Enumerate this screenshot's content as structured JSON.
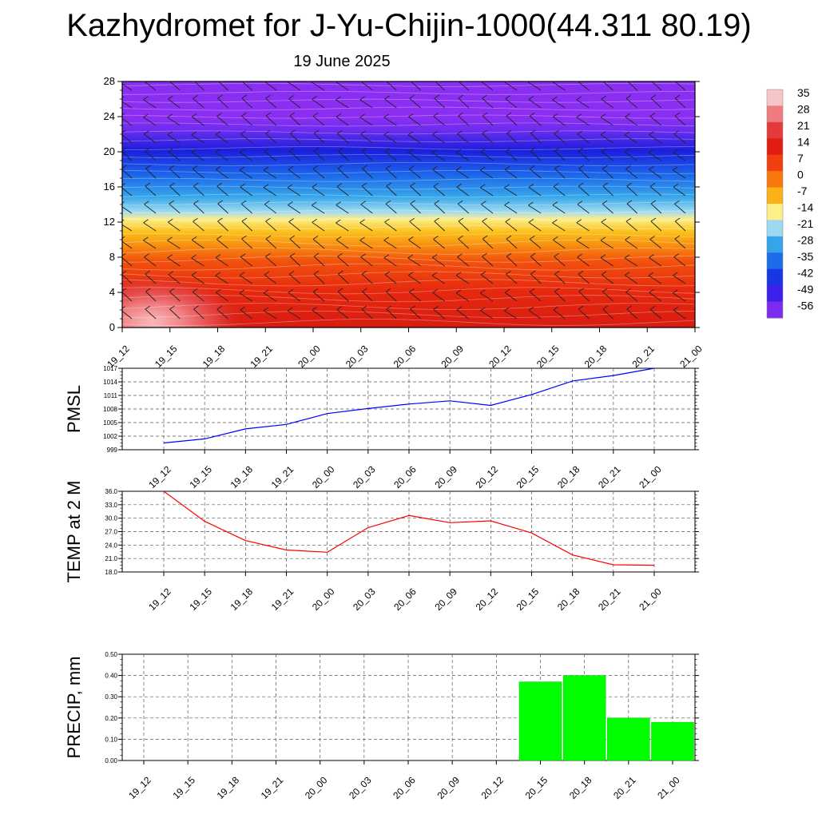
{
  "title": "Kazhydromet for J-Yu-Chijin-1000(44.311 80.19)",
  "subtitle": "19 June 2025",
  "time_labels": [
    "19_12",
    "19_15",
    "19_18",
    "19_21",
    "20_00",
    "20_03",
    "20_06",
    "20_09",
    "20_12",
    "20_15",
    "20_18",
    "20_21",
    "21_00"
  ],
  "chart_data": [
    {
      "type": "heatmap",
      "name": "cross-section",
      "x": [
        "19_12",
        "19_15",
        "19_18",
        "19_21",
        "20_00",
        "20_03",
        "20_06",
        "20_09",
        "20_12",
        "20_15",
        "20_18",
        "20_21",
        "21_00"
      ],
      "ylim": [
        0,
        28
      ],
      "yticks": [
        0,
        4,
        8,
        12,
        16,
        20,
        24,
        28
      ],
      "colorbar_labels": [
        "35",
        "28",
        "21",
        "14",
        "7",
        "0",
        "-7",
        "-14",
        "-21",
        "-28",
        "-35",
        "-42",
        "-49",
        "-56"
      ],
      "colorbar_colors": [
        "#f6c5c8",
        "#ef7a80",
        "#e43a3a",
        "#e21d12",
        "#f04010",
        "#f7780f",
        "#fbb117",
        "#fdee8a",
        "#9cd9f1",
        "#36a4ea",
        "#1f6ceb",
        "#1837e3",
        "#3b21ea",
        "#7c2cf0"
      ],
      "surface_values_by_time": [
        35,
        28,
        27,
        23,
        22,
        24,
        24,
        23,
        23,
        23,
        24,
        25,
        25
      ],
      "freezing_height": 13,
      "wind_barbs": true
    },
    {
      "type": "line",
      "ylabel": "PMSL",
      "ylim": [
        999,
        1017
      ],
      "yticks": [
        "999",
        "1002",
        "1005",
        "1008",
        "1011",
        "1014",
        "1017"
      ],
      "x": [
        "19_12",
        "19_15",
        "19_18",
        "19_21",
        "20_00",
        "20_03",
        "20_06",
        "20_09",
        "20_12",
        "20_15",
        "20_18",
        "20_21",
        "21_00"
      ],
      "series": [
        {
          "values": [
            1000.5,
            1001.4,
            1003.6,
            1004.6,
            1007.0,
            1008.1,
            1009.1,
            1009.8,
            1008.8,
            1011.2,
            1014.2,
            1015.4,
            1017.0
          ],
          "color": "#0000ff"
        }
      ],
      "grid": true
    },
    {
      "type": "line",
      "ylabel": "TEMP at 2 M",
      "ylim": [
        18,
        36
      ],
      "yticks": [
        "18.0",
        "21.0",
        "24.0",
        "27.0",
        "30.0",
        "33.0",
        "36.0"
      ],
      "x": [
        "19_12",
        "19_15",
        "19_18",
        "19_21",
        "20_00",
        "20_03",
        "20_06",
        "20_09",
        "20_12",
        "20_15",
        "20_18",
        "20_21",
        "21_00"
      ],
      "series": [
        {
          "values": [
            36.0,
            29.3,
            25.0,
            22.9,
            22.4,
            27.9,
            30.6,
            29.0,
            29.4,
            26.7,
            21.8,
            19.6,
            19.5
          ],
          "color": "#ff0000"
        }
      ],
      "grid": true
    },
    {
      "type": "bar",
      "ylabel": "PRECIP, mm",
      "ylim": [
        0,
        0.5
      ],
      "yticks": [
        "0.00",
        "0.10",
        "0.20",
        "0.30",
        "0.40",
        "0.50"
      ],
      "categories": [
        "19_12",
        "19_15",
        "19_18",
        "19_21",
        "20_00",
        "20_03",
        "20_06",
        "20_09",
        "20_12",
        "20_15",
        "20_18",
        "20_21",
        "21_00"
      ],
      "values": [
        0,
        0,
        0,
        0,
        0,
        0,
        0,
        0,
        0,
        0.37,
        0.4,
        0.2,
        0.18
      ],
      "color": "#00ff00",
      "grid": true
    }
  ]
}
